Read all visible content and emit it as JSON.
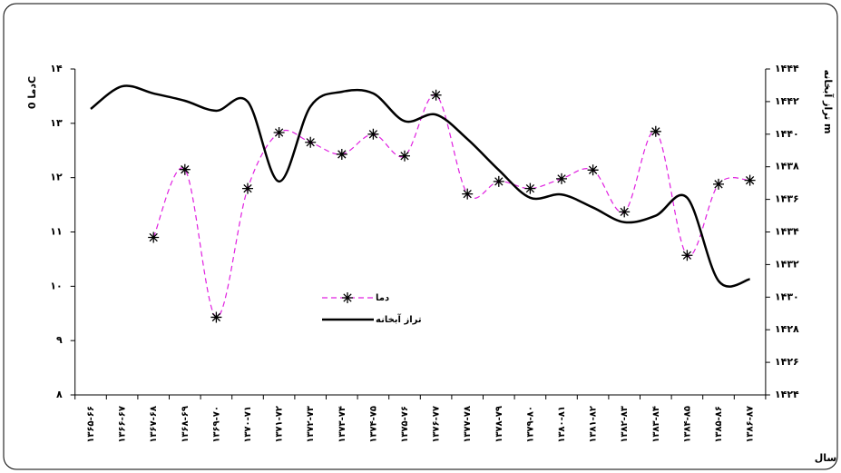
{
  "chart_data": {
    "type": "line",
    "y_label": "دما 0C",
    "y2_label": "تراز آبخانه m",
    "x_label": "سال",
    "categories": [
      "۱۳۶۵-۶۶",
      "۱۳۶۶-۶۷",
      "۱۳۶۷-۶۸",
      "۱۳۶۸-۶۹",
      "۱۳۶۹-۷۰",
      "۱۳۷۰-۷۱",
      "۱۳۷۱-۷۲",
      "۱۳۷۲-۷۳",
      "۱۳۷۳-۷۴",
      "۱۳۷۴-۷۵",
      "۱۳۷۵-۷۶",
      "۱۳۷۶-۷۷",
      "۱۳۷۷-۷۸",
      "۱۳۷۸-۷۹",
      "۱۳۷۹-۸۰",
      "۱۳۸۰-۸۱",
      "۱۳۸۱-۸۲",
      "۱۳۸۲-۸۳",
      "۱۳۸۳-۸۴",
      "۱۳۸۴-۸۵",
      "۱۳۸۵-۸۶",
      "۱۳۸۶-۸۷"
    ],
    "series": [
      {
        "name": "دما",
        "color": "#e020e0",
        "dashed": true,
        "marker": "star",
        "values": [
          null,
          null,
          10.9,
          12.15,
          9.43,
          11.8,
          12.83,
          12.65,
          12.43,
          12.8,
          12.4,
          13.52,
          11.7,
          11.93,
          11.8,
          11.98,
          12.14,
          11.37,
          12.85,
          10.57,
          11.88,
          11.95
        ]
      },
      {
        "name": "تراز آبخانه",
        "color": "#000000",
        "axis": "y2",
        "values": [
          1441.55,
          1442.94,
          1442.5,
          1442.05,
          1441.44,
          1442.0,
          1437.1,
          1441.7,
          1442.6,
          1442.5,
          1440.8,
          1441.2,
          1439.7,
          1437.8,
          1436.1,
          1436.3,
          1435.5,
          1434.6,
          1435.0,
          1436.1,
          1431.0,
          1431.1
        ]
      }
    ],
    "ylim": [
      8,
      14
    ],
    "yticks": [
      {
        "value": 8,
        "label": "۸"
      },
      {
        "value": 9,
        "label": "۹"
      },
      {
        "value": 10,
        "label": "۱۰"
      },
      {
        "value": 11,
        "label": "۱۱"
      },
      {
        "value": 12,
        "label": "۱۲"
      },
      {
        "value": 13,
        "label": "۱۳"
      },
      {
        "value": 14,
        "label": "۱۴"
      }
    ],
    "y2lim": [
      1424,
      1444
    ],
    "y2ticks": [
      {
        "value": 1424,
        "label": "۱۴۲۴"
      },
      {
        "value": 1426,
        "label": "۱۴۲۶"
      },
      {
        "value": 1428,
        "label": "۱۴۲۸"
      },
      {
        "value": 1430,
        "label": "۱۴۳۰"
      },
      {
        "value": 1432,
        "label": "۱۴۳۲"
      },
      {
        "value": 1434,
        "label": "۱۴۳۴"
      },
      {
        "value": 1436,
        "label": "۱۴۳۶"
      },
      {
        "value": 1438,
        "label": "۱۴۳۸"
      },
      {
        "value": 1440,
        "label": "۱۴۴۰"
      },
      {
        "value": 1442,
        "label": "۱۴۴۲"
      },
      {
        "value": 1444,
        "label": "۱۴۴۴"
      }
    ]
  }
}
